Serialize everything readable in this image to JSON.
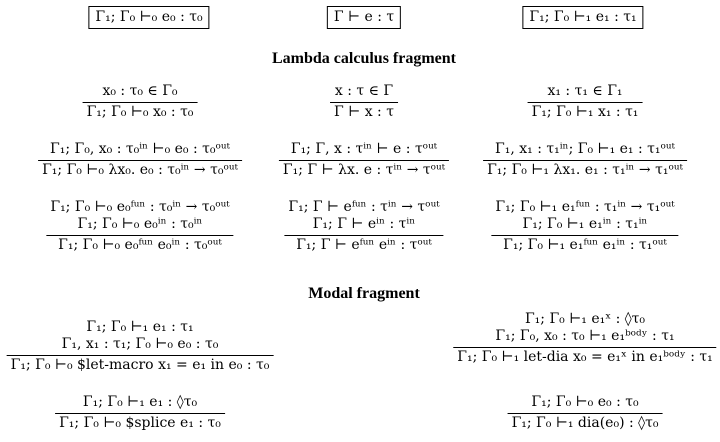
{
  "judgments": {
    "stage0": "Γ₁; Γ₀ ⊢₀ e₀ : τ₀",
    "plain": "Γ ⊢ e : τ",
    "stage1": "Γ₁; Γ₀ ⊢₁ e₁ : τ₁"
  },
  "sections": {
    "lambda": "Lambda calculus fragment",
    "modal": "Modal fragment"
  },
  "rules": {
    "var0": {
      "premises": [
        "x₀ : τ₀ ∈ Γ₀"
      ],
      "conclusion": "Γ₁; Γ₀ ⊢₀ x₀ : τ₀"
    },
    "var": {
      "premises": [
        "x : τ ∈ Γ"
      ],
      "conclusion": "Γ ⊢ x : τ"
    },
    "var1": {
      "premises": [
        "x₁ : τ₁ ∈ Γ₁"
      ],
      "conclusion": "Γ₁; Γ₀ ⊢₁ x₁ : τ₁"
    },
    "abs0": {
      "premises": [
        "Γ₁; Γ₀, x₀ : τ₀ⁱⁿ ⊢₀ e₀ : τ₀ᵒᵘᵗ"
      ],
      "conclusion": "Γ₁; Γ₀ ⊢₀ λx₀. e₀ : τ₀ⁱⁿ → τ₀ᵒᵘᵗ"
    },
    "abs": {
      "premises": [
        "Γ₁; Γ, x : τⁱⁿ ⊢ e : τᵒᵘᵗ"
      ],
      "conclusion": "Γ₁; Γ ⊢ λx. e : τⁱⁿ → τᵒᵘᵗ"
    },
    "abs1": {
      "premises": [
        "Γ₁, x₁ : τ₁ⁱⁿ; Γ₀ ⊢₁ e₁ : τ₁ᵒᵘᵗ"
      ],
      "conclusion": "Γ₁; Γ₀ ⊢₁ λx₁. e₁ : τ₁ⁱⁿ → τ₁ᵒᵘᵗ"
    },
    "app0": {
      "premises": [
        "Γ₁; Γ₀ ⊢₀ e₀ᶠᵘⁿ : τ₀ⁱⁿ → τ₀ᵒᵘᵗ",
        "Γ₁; Γ₀ ⊢₀ e₀ⁱⁿ : τ₀ⁱⁿ"
      ],
      "conclusion": "Γ₁; Γ₀ ⊢₀ e₀ᶠᵘⁿ e₀ⁱⁿ : τ₀ᵒᵘᵗ"
    },
    "app": {
      "premises": [
        "Γ₁; Γ ⊢ eᶠᵘⁿ : τⁱⁿ → τᵒᵘᵗ",
        "Γ₁; Γ ⊢ eⁱⁿ : τⁱⁿ"
      ],
      "conclusion": "Γ₁; Γ ⊢ eᶠᵘⁿ eⁱⁿ : τᵒᵘᵗ"
    },
    "app1": {
      "premises": [
        "Γ₁; Γ₀ ⊢₁ e₁ᶠᵘⁿ : τ₁ⁱⁿ → τ₁ᵒᵘᵗ",
        "Γ₁; Γ₀ ⊢₁ e₁ⁱⁿ : τ₁ⁱⁿ"
      ],
      "conclusion": "Γ₁; Γ₀ ⊢₁ e₁ᶠᵘⁿ e₁ⁱⁿ : τ₁ᵒᵘᵗ"
    },
    "letmacro": {
      "premises": [
        "Γ₁; Γ₀ ⊢₁ e₁ : τ₁",
        "Γ₁, x₁ : τ₁; Γ₀ ⊢₀ e₀ : τ₀"
      ],
      "conclusion": "Γ₁; Γ₀ ⊢₀ $let-macro x₁ = e₁ in e₀ : τ₀"
    },
    "letdia": {
      "premises": [
        "Γ₁; Γ₀ ⊢₁ e₁ˣ : ◊τ₀",
        "Γ₁; Γ₀, x₀ : τ₀ ⊢₁ e₁ᵇᵒᵈʸ : τ₁"
      ],
      "conclusion": "Γ₁; Γ₀ ⊢₁ let-dia x₀ = e₁ˣ in e₁ᵇᵒᵈʸ : τ₁"
    },
    "splice": {
      "premises": [
        "Γ₁; Γ₀ ⊢₁ e₁ : ◊τ₀"
      ],
      "conclusion": "Γ₁; Γ₀ ⊢₀ $splice e₁ : τ₀"
    },
    "dia": {
      "premises": [
        "Γ₁; Γ₀ ⊢₀ e₀ : τ₀"
      ],
      "conclusion": "Γ₁; Γ₀ ⊢₁ dia(e₀) : ◊τ₀"
    }
  }
}
